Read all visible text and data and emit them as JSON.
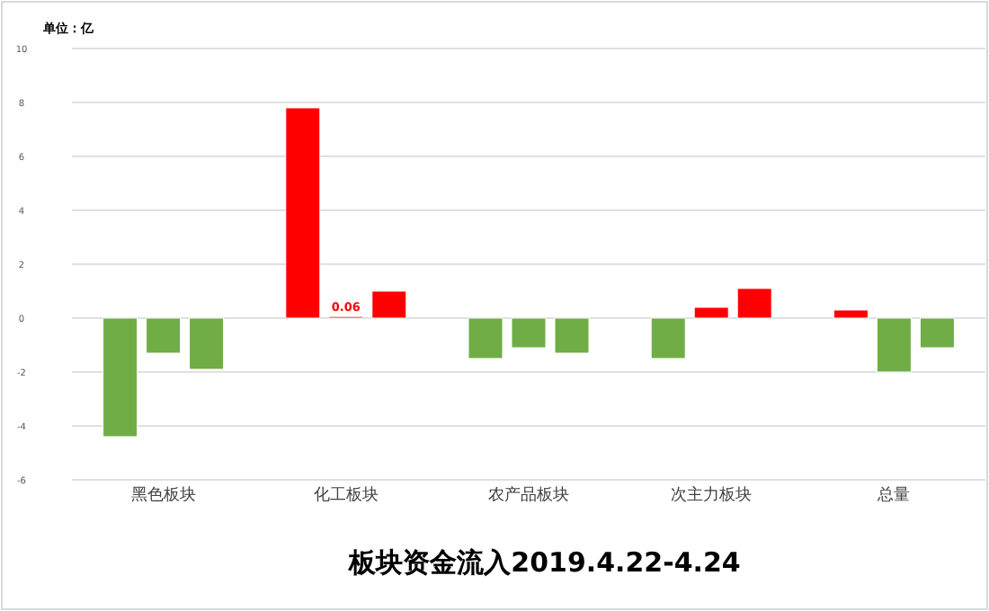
{
  "chart_data": {
    "type": "bar",
    "title": "板块资金流入2019.4.22-4.24",
    "annotations": [
      "单位：亿"
    ],
    "categories": [
      "黑色板块",
      "化工板块",
      "农产品板块",
      "次主力板块",
      "总量"
    ],
    "series": [
      {
        "values": [
          -4.4,
          7.8,
          -1.5,
          -1.5,
          0.3
        ],
        "colors": [
          "#70ad47",
          "#ff0000",
          "#70ad47",
          "#70ad47",
          "#ff0000"
        ]
      },
      {
        "values": [
          -1.3,
          0.06,
          -1.1,
          0.4,
          -2.0
        ],
        "colors": [
          "#70ad47",
          "#ff0000",
          "#70ad47",
          "#ff0000",
          "#70ad47"
        ],
        "value_labels": [
          null,
          "0.06",
          null,
          null,
          null
        ]
      },
      {
        "values": [
          -1.9,
          1.0,
          -1.3,
          1.1,
          -1.1
        ],
        "colors": [
          "#70ad47",
          "#ff0000",
          "#70ad47",
          "#ff0000",
          "#70ad47"
        ]
      }
    ],
    "ylim": [
      -6,
      10
    ],
    "yticks": [
      -6,
      -4,
      -2,
      0,
      2,
      4,
      6,
      8,
      10
    ],
    "grid": "y"
  }
}
